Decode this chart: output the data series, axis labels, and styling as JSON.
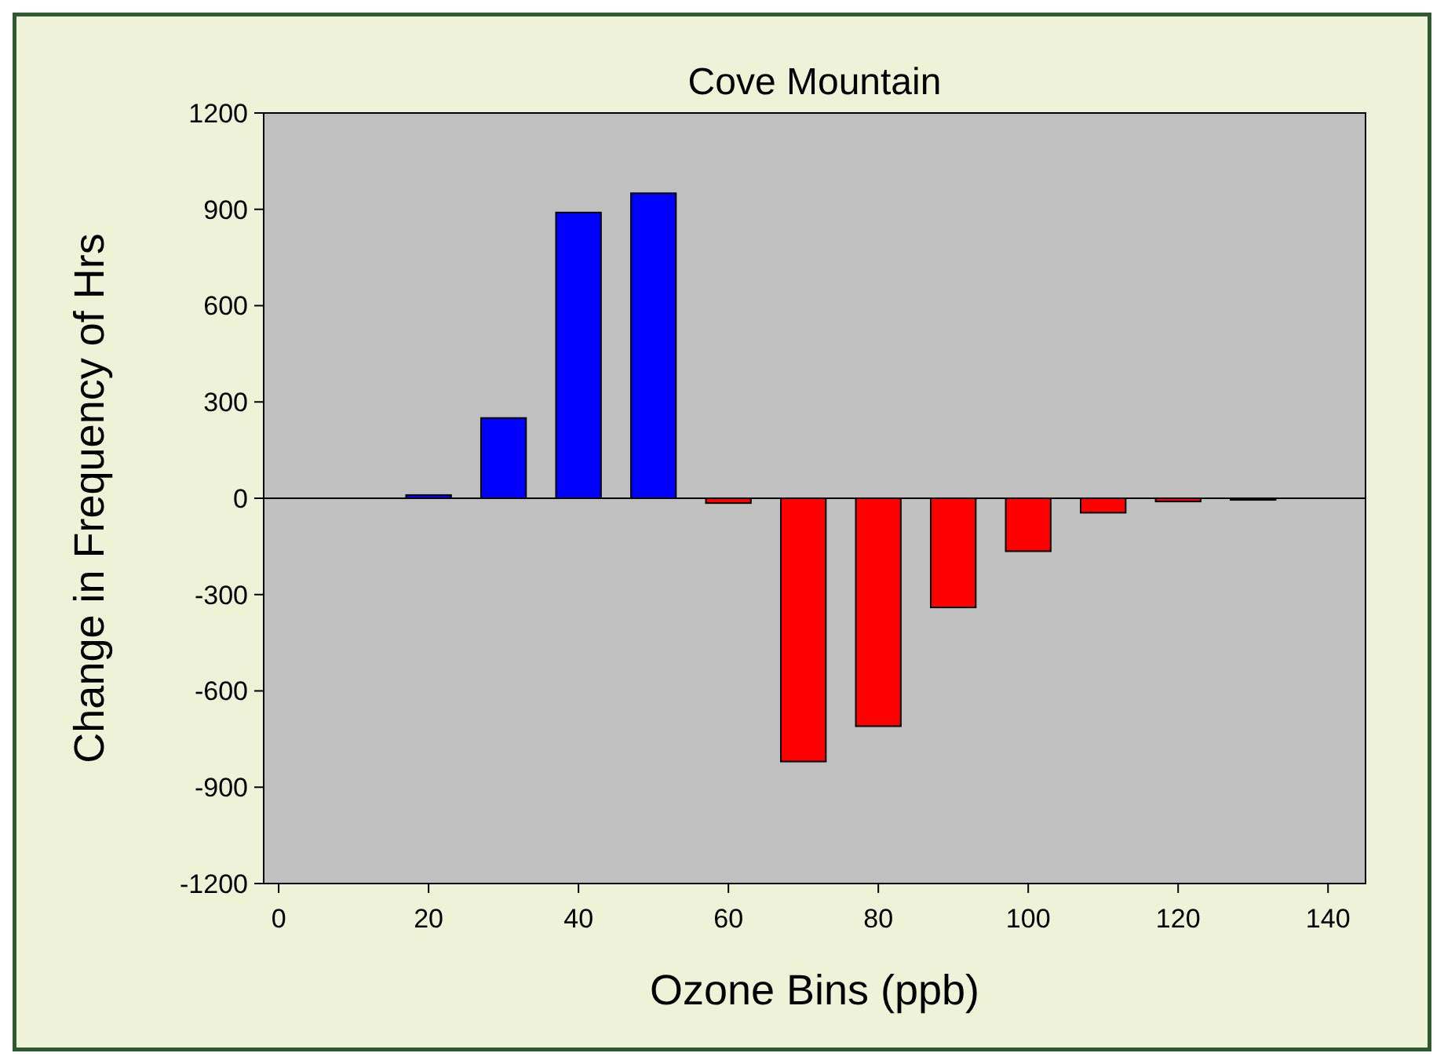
{
  "chart_data": {
    "type": "bar",
    "title": "Cove Mountain",
    "xlabel": "Ozone Bins (ppb)",
    "ylabel": "Change in Frequency of Hrs",
    "x": [
      20,
      30,
      40,
      50,
      60,
      70,
      80,
      90,
      100,
      110,
      120,
      130
    ],
    "values": [
      10,
      250,
      890,
      950,
      -15,
      -820,
      -710,
      -340,
      -165,
      -45,
      -10,
      -5
    ],
    "colors": [
      "#0000ff",
      "#0000ff",
      "#0000ff",
      "#0000ff",
      "#ff0000",
      "#ff0000",
      "#ff0000",
      "#ff0000",
      "#ff0000",
      "#ff0000",
      "#ff0000",
      "#ff0000"
    ],
    "xlim": [
      -2,
      145
    ],
    "xticks": [
      0,
      20,
      40,
      60,
      80,
      100,
      120,
      140
    ],
    "ylim": [
      -1200,
      1200
    ],
    "yticks": [
      -1200,
      -900,
      -600,
      -300,
      0,
      300,
      600,
      900,
      1200
    ],
    "ref_lines": [
      {
        "axis": "y",
        "value": 0
      }
    ],
    "grid": false
  }
}
